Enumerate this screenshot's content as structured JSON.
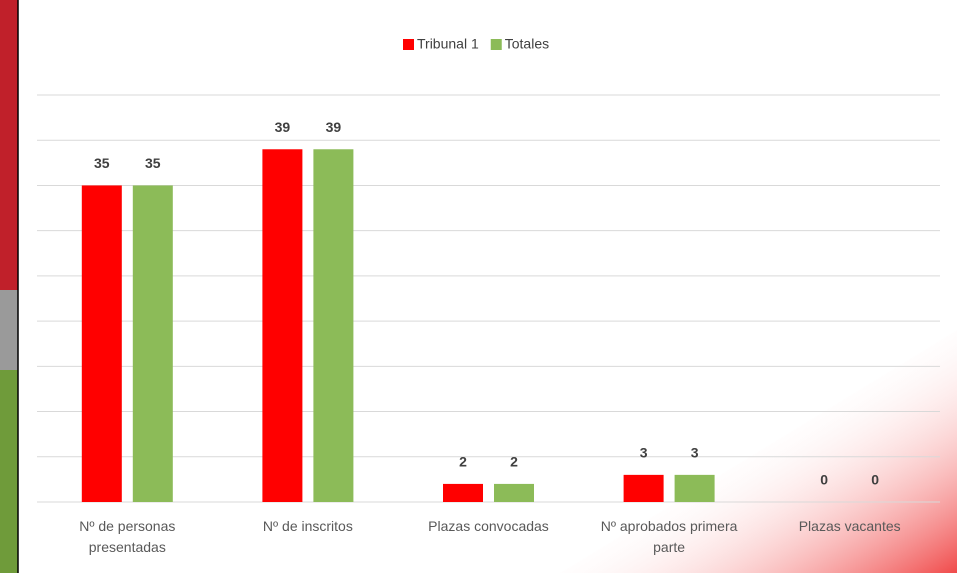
{
  "chart_data": {
    "type": "bar",
    "categories": [
      "Nº de personas presentadas",
      "Nº de inscritos",
      "Plazas convocadas",
      "Nº aprobados primera parte",
      "Plazas vacantes"
    ],
    "series": [
      {
        "name": "Tribunal 1",
        "color": "#ff0000",
        "values": [
          35,
          39,
          2,
          3,
          0
        ]
      },
      {
        "name": "Totales",
        "color": "#8cbb58",
        "values": [
          35,
          39,
          2,
          3,
          0
        ]
      }
    ],
    "ylim": [
      0,
      45
    ],
    "yticks": [
      0,
      5,
      10,
      15,
      20,
      25,
      30,
      35,
      40,
      45
    ],
    "grid": true,
    "legend": "top"
  }
}
